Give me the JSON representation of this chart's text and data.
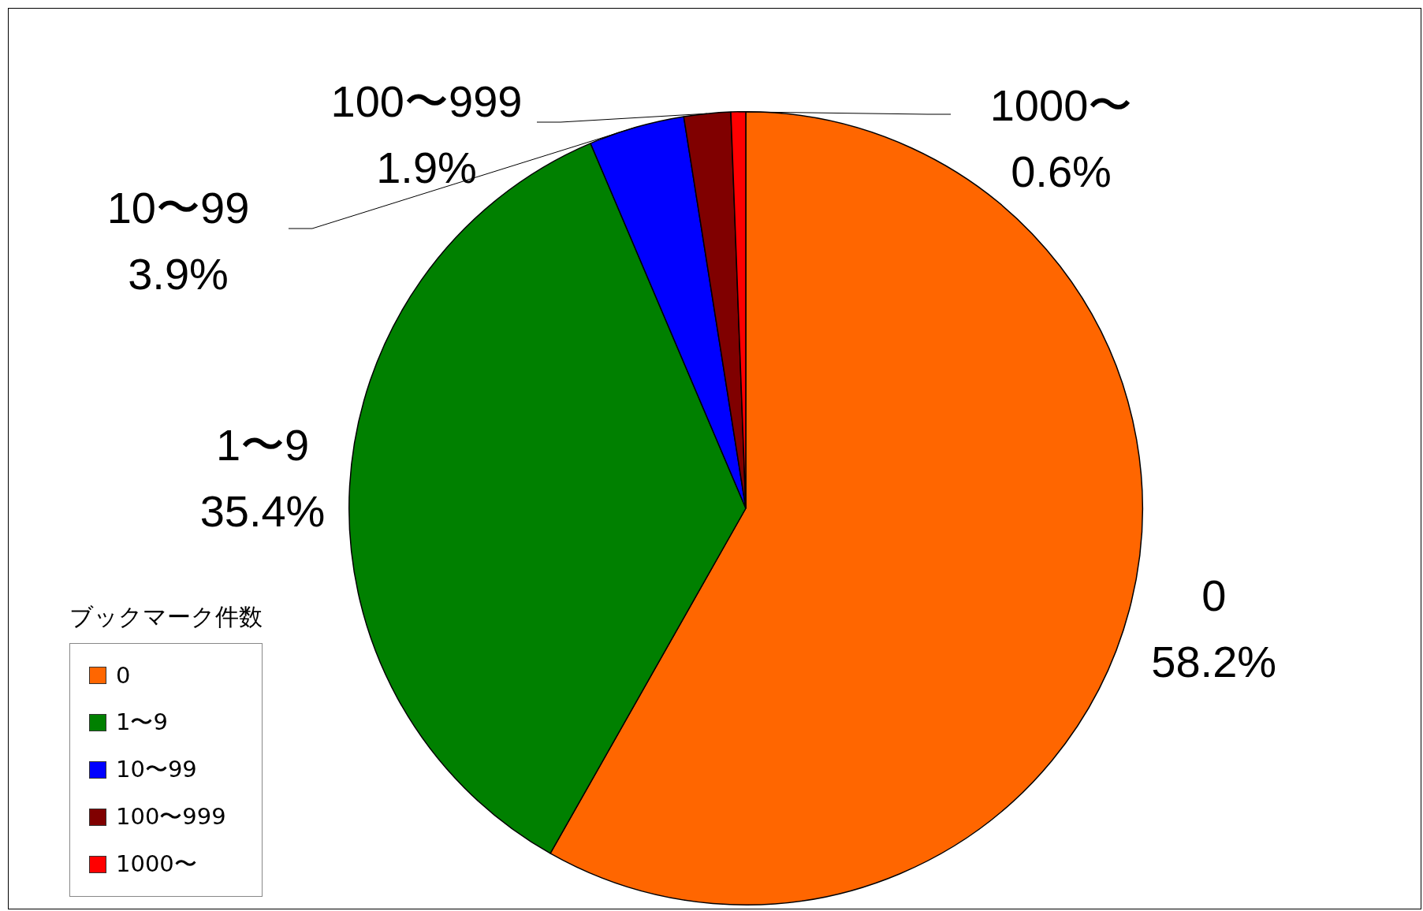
{
  "chart_data": {
    "type": "pie",
    "legend_title": "ブックマーク件数",
    "categories": [
      "0",
      "1〜9",
      "10〜99",
      "100〜999",
      "1000〜"
    ],
    "values": [
      58.2,
      35.4,
      3.9,
      1.9,
      0.6
    ],
    "value_labels": [
      "58.2%",
      "35.4%",
      "3.9%",
      "1.9%",
      "0.6%"
    ],
    "colors": [
      "#ff6600",
      "#008000",
      "#0000ff",
      "#800000",
      "#ff0000"
    ],
    "legend": "bottom left"
  }
}
